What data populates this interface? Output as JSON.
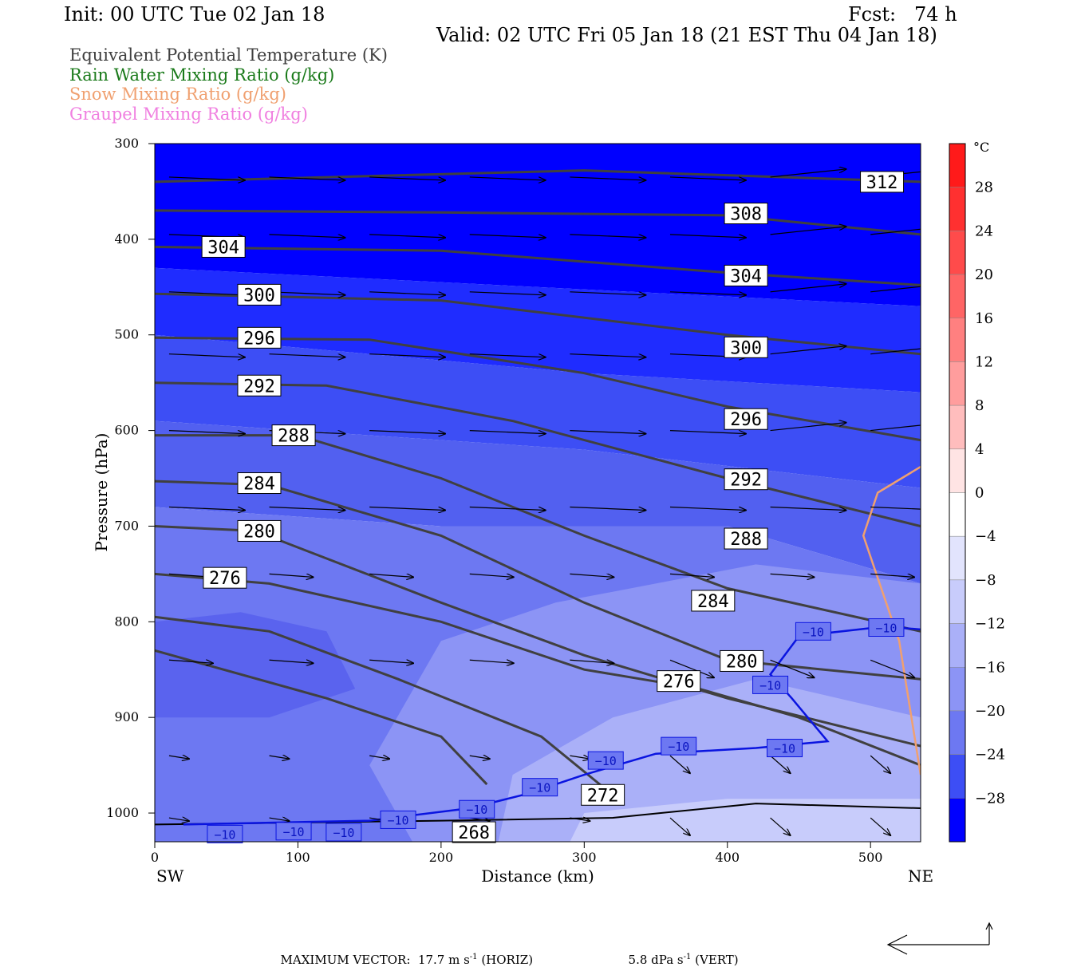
{
  "header": {
    "init": "Init: 00 UTC Tue 02 Jan 18",
    "fcst": "Fcst:   74 h",
    "valid": "Valid: 02 UTC Fri 05 Jan 18 (21 EST Thu 04 Jan 18)"
  },
  "legend": [
    {
      "label": "Equivalent Potential Temperature (K)",
      "color": "#404040"
    },
    {
      "label": "Rain Water Mixing Ratio (g/kg)",
      "color": "#1a7a1a"
    },
    {
      "label": "Snow Mixing Ratio (g/kg)",
      "color": "#f0a070"
    },
    {
      "label": "Graupel Mixing Ratio (g/kg)",
      "color": "#f080e0"
    }
  ],
  "footer": {
    "max_vector_label": "MAXIMUM VECTOR:",
    "horiz_value": "17.7 m s",
    "horiz_unit": "(HORIZ)",
    "vert_value": "5.8 dPa s",
    "vert_unit": "(VERT)",
    "exponent": "-1"
  },
  "chart_data": {
    "type": "heatmap",
    "xlabel": "Distance (km)",
    "ylabel": "Pressure (hPa)",
    "xlim": [
      0,
      535
    ],
    "ylim": [
      1030,
      300
    ],
    "x_ticks": [
      0,
      100,
      200,
      300,
      400,
      500
    ],
    "y_ticks": [
      300,
      400,
      500,
      600,
      700,
      800,
      900,
      1000
    ],
    "x_endpoints": {
      "left": "SW",
      "right": "NE"
    },
    "colorbar": {
      "unit": "°C",
      "tick_labels": [
        28,
        24,
        20,
        16,
        12,
        8,
        4,
        0,
        -4,
        -8,
        -12,
        -16,
        -20,
        -24,
        -28
      ],
      "range": [
        -32,
        32
      ]
    },
    "theta_e_contours": [
      {
        "value": 312,
        "points": [
          [
            0,
            340
          ],
          [
            300,
            328
          ],
          [
            535,
            340
          ]
        ]
      },
      {
        "value": 308,
        "points": [
          [
            0,
            370
          ],
          [
            200,
            372
          ],
          [
            400,
            375
          ],
          [
            535,
            395
          ]
        ]
      },
      {
        "value": 304,
        "points": [
          [
            0,
            408
          ],
          [
            200,
            412
          ],
          [
            400,
            435
          ],
          [
            535,
            448
          ]
        ]
      },
      {
        "value": 300,
        "points": [
          [
            0,
            457
          ],
          [
            200,
            464
          ],
          [
            400,
            500
          ],
          [
            535,
            520
          ]
        ]
      },
      {
        "value": 296,
        "points": [
          [
            0,
            503
          ],
          [
            150,
            505
          ],
          [
            300,
            540
          ],
          [
            400,
            575
          ],
          [
            535,
            610
          ]
        ]
      },
      {
        "value": 292,
        "points": [
          [
            0,
            550
          ],
          [
            120,
            553
          ],
          [
            250,
            590
          ],
          [
            400,
            650
          ],
          [
            535,
            700
          ]
        ]
      },
      {
        "value": 288,
        "points": [
          [
            0,
            605
          ],
          [
            100,
            605
          ],
          [
            200,
            650
          ],
          [
            300,
            710
          ],
          [
            400,
            765
          ],
          [
            535,
            810
          ]
        ]
      },
      {
        "value": 284,
        "points": [
          [
            0,
            653
          ],
          [
            80,
            657
          ],
          [
            200,
            710
          ],
          [
            300,
            780
          ],
          [
            400,
            840
          ],
          [
            535,
            860
          ]
        ]
      },
      {
        "value": 280,
        "points": [
          [
            0,
            700
          ],
          [
            70,
            705
          ],
          [
            200,
            780
          ],
          [
            300,
            835
          ],
          [
            400,
            880
          ],
          [
            535,
            930
          ]
        ]
      },
      {
        "value": 276,
        "points": [
          [
            0,
            750
          ],
          [
            80,
            760
          ],
          [
            200,
            800
          ],
          [
            300,
            850
          ],
          [
            380,
            870
          ],
          [
            450,
            900
          ],
          [
            535,
            950
          ]
        ]
      },
      {
        "value": 272,
        "points": [
          [
            0,
            795
          ],
          [
            80,
            810
          ],
          [
            170,
            860
          ],
          [
            270,
            920
          ],
          [
            315,
            975
          ]
        ]
      },
      {
        "value": 268,
        "points": [
          [
            0,
            830
          ],
          [
            120,
            880
          ],
          [
            200,
            920
          ],
          [
            232,
            970
          ]
        ]
      }
    ],
    "temp_minus10_contour": {
      "value": -10,
      "points": [
        [
          20,
          1012
        ],
        [
          150,
          1008
        ],
        [
          220,
          995
        ],
        [
          260,
          980
        ],
        [
          300,
          960
        ],
        [
          350,
          938
        ],
        [
          420,
          932
        ],
        [
          470,
          925
        ],
        [
          445,
          880
        ],
        [
          430,
          855
        ],
        [
          450,
          815
        ],
        [
          510,
          805
        ],
        [
          535,
          808
        ]
      ]
    },
    "snow_contour": {
      "points": [
        [
          535,
          638
        ],
        [
          505,
          665
        ],
        [
          495,
          710
        ],
        [
          520,
          820
        ],
        [
          535,
          960
        ]
      ]
    },
    "contour_labels": [
      {
        "text": "312",
        "x": 508,
        "y": 340
      },
      {
        "text": "308",
        "x": 413,
        "y": 373
      },
      {
        "text": "304",
        "x": 48,
        "y": 408
      },
      {
        "text": "304",
        "x": 413,
        "y": 438
      },
      {
        "text": "300",
        "x": 73,
        "y": 458
      },
      {
        "text": "300",
        "x": 413,
        "y": 513
      },
      {
        "text": "296",
        "x": 73,
        "y": 503
      },
      {
        "text": "296",
        "x": 413,
        "y": 588
      },
      {
        "text": "292",
        "x": 73,
        "y": 553
      },
      {
        "text": "292",
        "x": 413,
        "y": 651
      },
      {
        "text": "288",
        "x": 97,
        "y": 605
      },
      {
        "text": "288",
        "x": 413,
        "y": 713
      },
      {
        "text": "284",
        "x": 73,
        "y": 655
      },
      {
        "text": "284",
        "x": 390,
        "y": 778
      },
      {
        "text": "280",
        "x": 73,
        "y": 705
      },
      {
        "text": "280",
        "x": 410,
        "y": 841
      },
      {
        "text": "276",
        "x": 49,
        "y": 754
      },
      {
        "text": "276",
        "x": 366,
        "y": 862
      },
      {
        "text": "272",
        "x": 313,
        "y": 981
      },
      {
        "text": "268",
        "x": 223,
        "y": 1020
      }
    ],
    "minus10_labels": [
      {
        "text": "−10",
        "x": 49,
        "y": 1022
      },
      {
        "text": "−10",
        "x": 97,
        "y": 1019
      },
      {
        "text": "−10",
        "x": 132,
        "y": 1020
      },
      {
        "text": "−10",
        "x": 170,
        "y": 1007
      },
      {
        "text": "−10",
        "x": 225,
        "y": 996
      },
      {
        "text": "−10",
        "x": 269,
        "y": 973
      },
      {
        "text": "−10",
        "x": 315,
        "y": 945
      },
      {
        "text": "−10",
        "x": 366,
        "y": 930
      },
      {
        "text": "−10",
        "x": 440,
        "y": 932
      },
      {
        "text": "−10",
        "x": 430,
        "y": 866
      },
      {
        "text": "−10",
        "x": 460,
        "y": 810
      },
      {
        "text": "−10",
        "x": 511,
        "y": 806
      }
    ]
  }
}
